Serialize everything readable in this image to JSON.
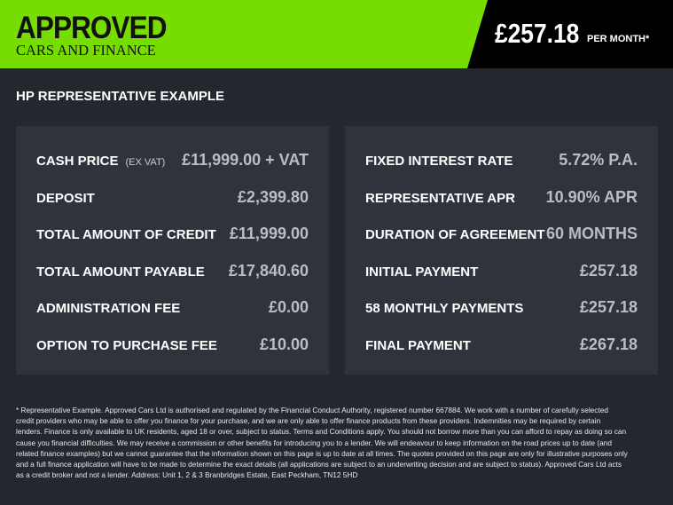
{
  "header": {
    "logo_line1": "APPROVED",
    "logo_line2": "CARS AND FINANCE",
    "monthly_price": "£257.18",
    "per_month": "PER MONTH*",
    "colors": {
      "brand_green": "#77dd00",
      "price_bg": "#000000"
    }
  },
  "title": "HP REPRESENTATIVE EXAMPLE",
  "left_panel": [
    {
      "label": "CASH PRICE",
      "sub": "(EX VAT)",
      "value": "£11,999.00 + VAT"
    },
    {
      "label": "DEPOSIT",
      "value": "£2,399.80"
    },
    {
      "label": "TOTAL AMOUNT OF CREDIT",
      "value": "£11,999.00"
    },
    {
      "label": "TOTAL AMOUNT PAYABLE",
      "value": "£17,840.60"
    },
    {
      "label": "ADMINISTRATION FEE",
      "value": "£0.00"
    },
    {
      "label": "OPTION TO PURCHASE FEE",
      "value": "£10.00"
    }
  ],
  "right_panel": [
    {
      "label": "FIXED INTEREST RATE",
      "value": "5.72% P.A."
    },
    {
      "label": "REPRESENTATIVE APR",
      "value": "10.90% APR"
    },
    {
      "label": "DURATION OF AGREEMENT",
      "value": "60 MONTHS"
    },
    {
      "label": "INITIAL PAYMENT",
      "value": "£257.18"
    },
    {
      "label": "58 MONTHLY PAYMENTS",
      "value": "£257.18"
    },
    {
      "label": "FINAL PAYMENT",
      "value": "£267.18"
    }
  ],
  "footer": "* Representative Example. Approved Cars Ltd is authorised and regulated by the Financial Conduct Authority, registered number 667884. We work with a number of carefully selected credit providers who may be able to offer you finance for your purchase, and we are only able to offer finance products from these providers. Indemnities may be required by certain lenders. Finance is only available to UK residents, aged 18 or over, subject to status. Terms and Conditions apply. You should not borrow more than you can afford to repay as doing so can cause you financial difficulties. We may receive a commission or other benefits for introducing you to a lender. We will endeavour to keep information on the road prices up to date (and related finance examples) but we cannot guarantee that the information shown on this page is up to date at all times. The quotes provided on this page are only for illustrative purposes only and a full finance application will have to be made to determine the exact details (all applications are subject to an underwriting decision and are subject to status). Approved Cars Ltd acts as a credit broker and not a lender. Address: Unit 1, 2 & 3 Branbridges Estate, East Peckham, TN12 5HD"
}
